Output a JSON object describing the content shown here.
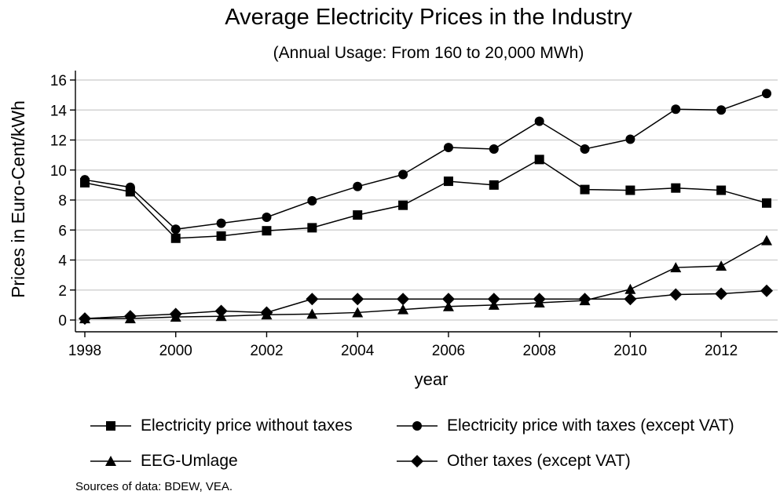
{
  "chart_data": {
    "type": "line",
    "title": "Average Electricity Prices in the Industry",
    "subtitle": "(Annual Usage: From 160 to 20,000 MWh)",
    "xlabel": "year",
    "ylabel": "Prices in Euro-Cent/kWh",
    "x": [
      1998,
      1999,
      2000,
      2001,
      2002,
      2003,
      2004,
      2005,
      2006,
      2007,
      2008,
      2009,
      2010,
      2011,
      2012,
      2013
    ],
    "xticks": [
      "1998",
      "2000",
      "2002",
      "2004",
      "2006",
      "2008",
      "2010",
      "2012"
    ],
    "yticks": [
      "0",
      "2",
      "4",
      "6",
      "8",
      "10",
      "12",
      "14",
      "16"
    ],
    "xlim": [
      1998,
      2013
    ],
    "ylim": [
      0,
      16
    ],
    "grid": "horizontal",
    "legend_position": "bottom",
    "series": [
      {
        "name": "Electricity price without taxes",
        "marker": "square",
        "values": [
          9.15,
          8.55,
          5.45,
          5.6,
          5.95,
          6.15,
          7.0,
          7.65,
          9.25,
          9.0,
          10.7,
          8.7,
          8.65,
          8.8,
          8.65,
          7.8
        ]
      },
      {
        "name": "Electricity price with taxes (except VAT)",
        "marker": "circle",
        "values": [
          9.35,
          8.85,
          6.05,
          6.45,
          6.85,
          7.95,
          8.9,
          9.7,
          11.5,
          11.4,
          13.25,
          11.4,
          12.05,
          14.05,
          14.0,
          15.1
        ]
      },
      {
        "name": "EEG-Umlage",
        "marker": "triangle",
        "values": [
          0.1,
          0.1,
          0.2,
          0.25,
          0.35,
          0.4,
          0.5,
          0.7,
          0.9,
          1.0,
          1.15,
          1.3,
          2.05,
          3.5,
          3.6,
          5.3
        ]
      },
      {
        "name": "Other taxes (except VAT)",
        "marker": "diamond",
        "values": [
          0.1,
          0.25,
          0.4,
          0.6,
          0.5,
          1.4,
          1.4,
          1.4,
          1.4,
          1.4,
          1.4,
          1.4,
          1.4,
          1.7,
          1.75,
          1.95
        ]
      }
    ],
    "source_note": "Sources of data: BDEW, VEA.",
    "colors": {
      "line": "#000000",
      "grid": "#d3d3d3",
      "background": "#ffffff"
    }
  }
}
